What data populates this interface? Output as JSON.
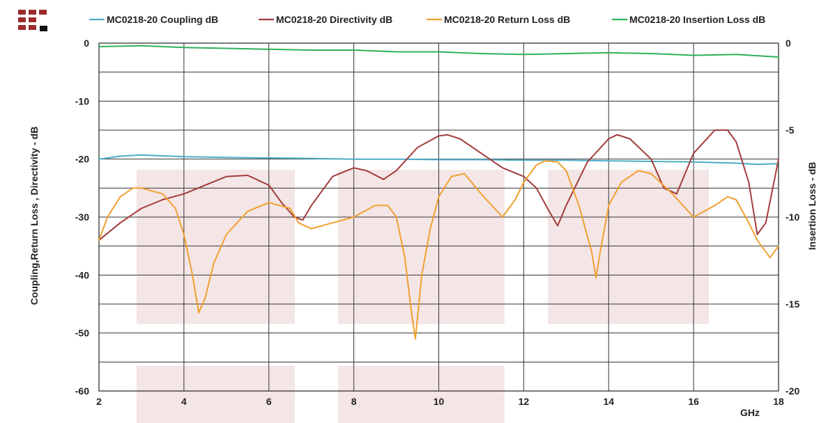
{
  "chart_data": {
    "type": "line",
    "xlabel": "GHz",
    "ylabel_left": "Coupling,Return Loss , Directivity - dB",
    "ylabel_right": "Insertion Loss - dB",
    "xlim": [
      2,
      18
    ],
    "ylim_left": [
      -60,
      0
    ],
    "ylim_right": [
      -20,
      0
    ],
    "x_ticks": [
      2,
      4,
      6,
      8,
      10,
      12,
      14,
      16,
      18
    ],
    "y_left_ticks": [
      0,
      -10,
      -20,
      -30,
      -40,
      -50,
      -60
    ],
    "y_right_ticks": [
      0,
      -5,
      -10,
      -15,
      -20
    ],
    "grid": true,
    "legend_position": "top",
    "series": [
      {
        "name": "MC0218-20 Coupling dB",
        "axis": "left",
        "color": "#4BACC6",
        "x": [
          2,
          2.5,
          3,
          4,
          5,
          6,
          7,
          8,
          9,
          10,
          11,
          12,
          13,
          14,
          15,
          16,
          17,
          17.5,
          18
        ],
        "y": [
          -20,
          -19.5,
          -19.3,
          -19.6,
          -19.7,
          -19.8,
          -19.9,
          -20,
          -20,
          -20.1,
          -20.1,
          -20.2,
          -20.2,
          -20.3,
          -20.4,
          -20.5,
          -20.7,
          -20.9,
          -20.8
        ]
      },
      {
        "name": "MC0218-20 Directivity dB",
        "axis": "left",
        "color": "#A33B3B",
        "x": [
          2,
          2.5,
          3,
          3.5,
          4,
          4.5,
          5,
          5.5,
          6,
          6.3,
          6.6,
          6.8,
          7,
          7.5,
          8,
          8.3,
          8.7,
          9,
          9.5,
          10,
          10.2,
          10.5,
          11,
          11.5,
          12,
          12.3,
          12.6,
          12.8,
          13,
          13.5,
          14,
          14.2,
          14.5,
          15,
          15.3,
          15.6,
          16,
          16.5,
          16.8,
          17,
          17.3,
          17.5,
          17.7,
          18
        ],
        "y": [
          -34,
          -31,
          -28.5,
          -27,
          -26,
          -24.5,
          -23,
          -22.8,
          -24.5,
          -27.5,
          -30,
          -30.5,
          -28,
          -23,
          -21.5,
          -22,
          -23.5,
          -22,
          -18,
          -16,
          -15.8,
          -16.5,
          -19,
          -21.5,
          -23,
          -25,
          -29,
          -31.5,
          -28,
          -20.5,
          -16.5,
          -15.8,
          -16.5,
          -20,
          -25,
          -26,
          -19,
          -15,
          -15,
          -17,
          -24,
          -33,
          -31,
          -20
        ]
      },
      {
        "name": "MC0218-20 Return Loss dB",
        "axis": "left",
        "color": "#F0A030",
        "x": [
          2,
          2.2,
          2.5,
          2.8,
          3,
          3.5,
          3.8,
          4,
          4.2,
          4.35,
          4.5,
          4.7,
          5,
          5.5,
          6,
          6.5,
          6.7,
          7,
          7.5,
          8,
          8.5,
          8.8,
          9,
          9.2,
          9.35,
          9.45,
          9.6,
          9.8,
          10,
          10.3,
          10.6,
          11,
          11.5,
          11.8,
          12,
          12.3,
          12.5,
          12.8,
          13,
          13.3,
          13.6,
          13.7,
          13.8,
          14,
          14.3,
          14.7,
          15,
          15.5,
          16,
          16.5,
          16.8,
          17,
          17.3,
          17.5,
          17.8,
          18
        ],
        "y": [
          -34,
          -30,
          -26.5,
          -25,
          -25,
          -26,
          -28.5,
          -33,
          -40,
          -46.5,
          -44,
          -38,
          -33,
          -29,
          -27.5,
          -28.5,
          -31,
          -32,
          -31,
          -30,
          -28,
          -28,
          -30,
          -37,
          -46,
          -51,
          -40,
          -32,
          -26.5,
          -23,
          -22.5,
          -26,
          -30,
          -27,
          -24,
          -21,
          -20.3,
          -20.5,
          -22,
          -28,
          -36,
          -40.5,
          -36,
          -28,
          -24,
          -22,
          -22.5,
          -26,
          -30,
          -28,
          -26.5,
          -27,
          -31,
          -34,
          -37,
          -35
        ]
      },
      {
        "name": "MC0218-20 Insertion Loss dB",
        "axis": "right",
        "color": "#2EB05A",
        "x": [
          2,
          3,
          4,
          5,
          6,
          7,
          8,
          9,
          10,
          11,
          12,
          13,
          14,
          15,
          16,
          17,
          18
        ],
        "y": [
          -0.2,
          -0.15,
          -0.25,
          -0.3,
          -0.35,
          -0.4,
          -0.4,
          -0.5,
          -0.5,
          -0.6,
          -0.65,
          -0.6,
          -0.55,
          -0.6,
          -0.7,
          -0.65,
          -0.8
        ]
      }
    ]
  }
}
